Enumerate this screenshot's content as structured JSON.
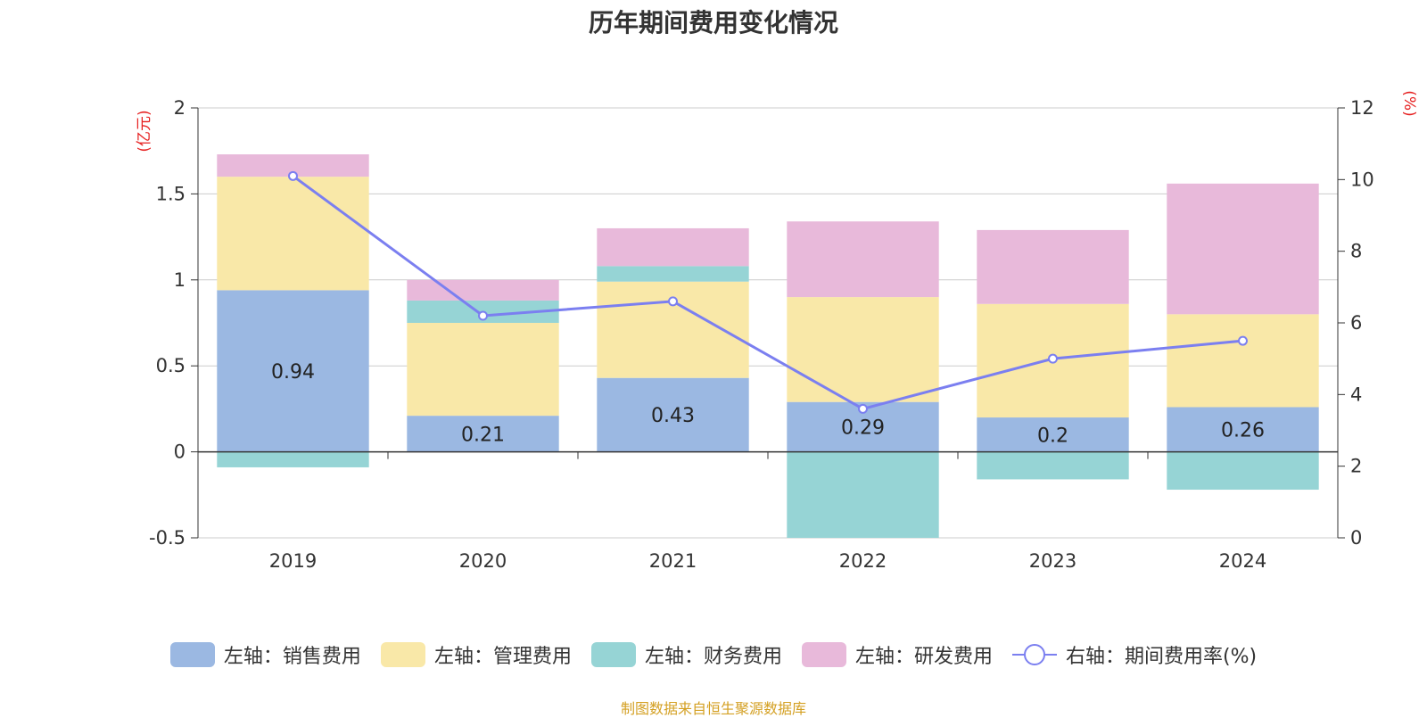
{
  "chart_data": {
    "type": "bar",
    "stacked": true,
    "title": "历年期间费用变化情况",
    "categories": [
      "2019",
      "2020",
      "2021",
      "2022",
      "2023",
      "2024"
    ],
    "y_left": {
      "unit": "(亿元)",
      "ylim": [
        -0.5,
        2
      ],
      "ticks": [
        2,
        1.5,
        1,
        0.5,
        0,
        -0.5
      ],
      "tick_labels": [
        "2",
        "1.5",
        "1",
        "0.5",
        "0",
        "-0.5"
      ]
    },
    "y_right": {
      "unit": "(%)",
      "ylim": [
        0,
        12
      ],
      "ticks": [
        12,
        10,
        8,
        6,
        4,
        2,
        0
      ],
      "tick_labels": [
        "12",
        "10",
        "8",
        "6",
        "4",
        "2",
        "0"
      ]
    },
    "grid": true,
    "legend_position": "bottom",
    "series": [
      {
        "name": "左轴：销售费用",
        "axis": "left",
        "color": "#9bb8e2",
        "values": [
          0.94,
          0.21,
          0.43,
          0.29,
          0.2,
          0.26
        ],
        "labels": [
          "0.94",
          "0.21",
          "0.43",
          "0.29",
          "0.2",
          "0.26"
        ]
      },
      {
        "name": "左轴：管理费用",
        "axis": "left",
        "color": "#f9e8a8",
        "values": [
          0.66,
          0.54,
          0.56,
          0.61,
          0.66,
          0.54
        ]
      },
      {
        "name": "左轴：财务费用",
        "axis": "left",
        "color": "#96d4d5",
        "values": [
          -0.09,
          0.13,
          0.09,
          -0.5,
          -0.16,
          -0.22
        ]
      },
      {
        "name": "左轴：研发费用",
        "axis": "left",
        "color": "#e8b9da",
        "values": [
          0.13,
          0.12,
          0.22,
          0.44,
          0.43,
          0.76
        ]
      },
      {
        "name": "右轴：期间费用率(%)",
        "axis": "right",
        "type": "line",
        "color": "#7b7ff0",
        "values": [
          10.1,
          6.2,
          6.6,
          3.6,
          5.0,
          5.5
        ]
      }
    ]
  },
  "footer": "制图数据来自恒生聚源数据库"
}
